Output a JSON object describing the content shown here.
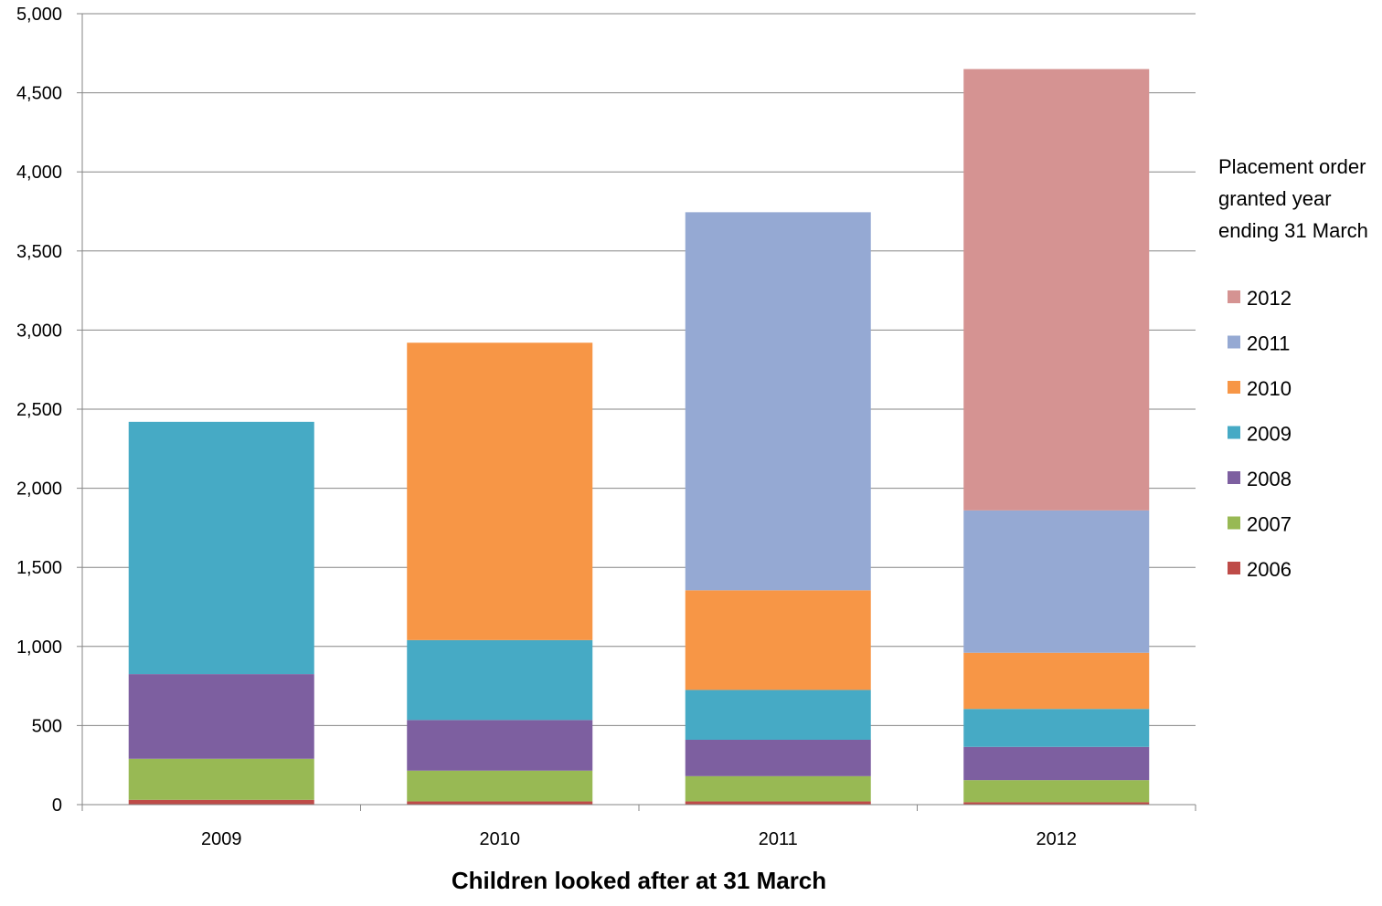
{
  "chart_data": {
    "type": "bar",
    "stacked": true,
    "categories": [
      "2009",
      "2010",
      "2011",
      "2012"
    ],
    "xlabel": "Children looked after at 31 March",
    "ylabel": "",
    "ylim": [
      0,
      5000
    ],
    "yticks": [
      0,
      500,
      1000,
      1500,
      2000,
      2500,
      3000,
      3500,
      4000,
      4500,
      5000
    ],
    "ytick_labels": [
      "0",
      "500",
      "1,000",
      "1,500",
      "2,000",
      "2,500",
      "3,000",
      "3,500",
      "4,000",
      "4,500",
      "5,000"
    ],
    "grid": true,
    "legend_placement": "right",
    "legend_title_lines": [
      "Placement order",
      "granted year",
      "ending 31 March"
    ],
    "series": [
      {
        "name": "2006",
        "color": "#BE4B48",
        "values": [
          30,
          20,
          20,
          15
        ]
      },
      {
        "name": "2007",
        "color": "#98B954",
        "values": [
          260,
          195,
          160,
          140
        ]
      },
      {
        "name": "2008",
        "color": "#7D5FA0",
        "values": [
          535,
          320,
          230,
          210
        ]
      },
      {
        "name": "2009",
        "color": "#46AAC5",
        "values": [
          1595,
          505,
          315,
          240
        ]
      },
      {
        "name": "2010",
        "color": "#F79646",
        "values": [
          0,
          1880,
          630,
          355
        ]
      },
      {
        "name": "2011",
        "color": "#95A9D3",
        "values": [
          0,
          0,
          2390,
          900
        ]
      },
      {
        "name": "2012",
        "color": "#D59392",
        "values": [
          0,
          0,
          0,
          2790
        ]
      }
    ]
  }
}
